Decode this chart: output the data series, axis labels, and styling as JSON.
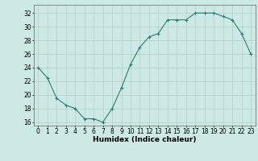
{
  "x": [
    0,
    1,
    2,
    3,
    4,
    5,
    6,
    7,
    8,
    9,
    10,
    11,
    12,
    13,
    14,
    15,
    16,
    17,
    18,
    19,
    20,
    21,
    22,
    23
  ],
  "y": [
    24,
    22.5,
    19.5,
    18.5,
    18,
    16.5,
    16.5,
    16,
    18,
    21,
    24.5,
    27,
    28.5,
    29,
    31,
    31,
    31,
    32,
    32,
    32,
    31.5,
    31,
    29,
    26
  ],
  "line_color": "#2e7d6e",
  "marker": "+",
  "marker_size": 3,
  "marker_linewidth": 0.8,
  "line_width": 0.8,
  "bg_color": "#cce9e6",
  "grid_color": "#b0d0cc",
  "xlabel": "Humidex (Indice chaleur)",
  "ylim": [
    15.5,
    33.2
  ],
  "xlim": [
    -0.5,
    23.5
  ],
  "yticks": [
    16,
    18,
    20,
    22,
    24,
    26,
    28,
    30,
    32
  ],
  "xticks": [
    0,
    1,
    2,
    3,
    4,
    5,
    6,
    7,
    8,
    9,
    10,
    11,
    12,
    13,
    14,
    15,
    16,
    17,
    18,
    19,
    20,
    21,
    22,
    23
  ],
  "label_fontsize": 6.5,
  "tick_fontsize": 5.5
}
